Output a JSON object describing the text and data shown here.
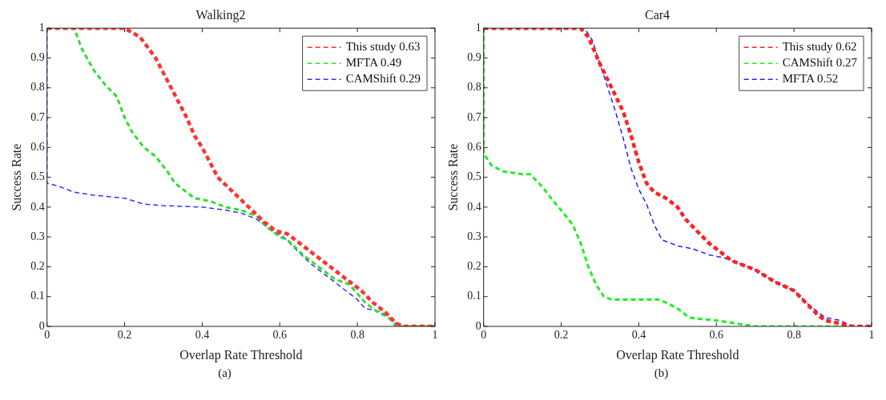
{
  "chart_data": [
    {
      "type": "line",
      "title": "Walking2",
      "xlabel": "Overlap Rate Threshold",
      "ylabel": "Success Rate",
      "xlim": [
        0,
        1
      ],
      "ylim": [
        0,
        1
      ],
      "xticks": [
        0,
        0.2,
        0.4,
        0.6,
        0.8,
        1
      ],
      "yticks": [
        0,
        0.1,
        0.2,
        0.3,
        0.4,
        0.5,
        0.6,
        0.7,
        0.8,
        0.9,
        1
      ],
      "grid": false,
      "legend": "top right",
      "line_style": "dashed",
      "marker": "none",
      "annotations": [
        "(a)"
      ],
      "series": [
        {
          "name": "This study 0.63",
          "color": "#ff3333",
          "x": [
            0,
            0.2,
            0.24,
            0.28,
            0.32,
            0.36,
            0.38,
            0.4,
            0.44,
            0.48,
            0.52,
            0.56,
            0.59,
            0.62,
            0.66,
            0.7,
            0.74,
            0.78,
            0.81,
            0.84,
            0.87,
            0.9,
            0.92,
            1
          ],
          "values": [
            1,
            1,
            0.97,
            0.9,
            0.8,
            0.7,
            0.64,
            0.6,
            0.5,
            0.45,
            0.4,
            0.35,
            0.32,
            0.31,
            0.27,
            0.23,
            0.19,
            0.15,
            0.12,
            0.08,
            0.05,
            0.01,
            0,
            0
          ]
        },
        {
          "name": "MFTA 0.49",
          "color": "#33dd33",
          "x": [
            0,
            0.07,
            0.09,
            0.12,
            0.15,
            0.18,
            0.2,
            0.22,
            0.25,
            0.28,
            0.31,
            0.33,
            0.36,
            0.38,
            0.42,
            0.46,
            0.5,
            0.54,
            0.57,
            0.6,
            0.62,
            0.66,
            0.7,
            0.74,
            0.78,
            0.8,
            0.82,
            0.85,
            0.88,
            0.9,
            1
          ],
          "values": [
            1,
            1,
            0.93,
            0.86,
            0.81,
            0.77,
            0.7,
            0.65,
            0.6,
            0.57,
            0.52,
            0.48,
            0.45,
            0.43,
            0.42,
            0.4,
            0.39,
            0.37,
            0.33,
            0.3,
            0.29,
            0.24,
            0.2,
            0.16,
            0.14,
            0.11,
            0.08,
            0.05,
            0.03,
            0,
            0
          ]
        },
        {
          "name": "CAMShift 0.29",
          "color": "#3333ff",
          "x": [
            0,
            0,
            0.03,
            0.07,
            0.12,
            0.2,
            0.25,
            0.3,
            0.4,
            0.46,
            0.5,
            0.54,
            0.58,
            0.61,
            0.64,
            0.68,
            0.72,
            0.76,
            0.8,
            0.82,
            0.86,
            0.9,
            0.91,
            1
          ],
          "values": [
            1,
            0.48,
            0.47,
            0.45,
            0.44,
            0.43,
            0.41,
            0.405,
            0.4,
            0.39,
            0.38,
            0.36,
            0.32,
            0.3,
            0.26,
            0.21,
            0.17,
            0.13,
            0.09,
            0.06,
            0.05,
            0.01,
            0,
            0
          ]
        }
      ]
    },
    {
      "type": "line",
      "title": "Car4",
      "xlabel": "Overlap Rate Threshold",
      "ylabel": "Success Rate",
      "xlim": [
        0,
        1
      ],
      "ylim": [
        0,
        1
      ],
      "xticks": [
        0,
        0.2,
        0.4,
        0.6,
        0.8,
        1
      ],
      "yticks": [
        0,
        0.1,
        0.2,
        0.3,
        0.4,
        0.5,
        0.6,
        0.7,
        0.8,
        0.9,
        1
      ],
      "grid": false,
      "legend": "top right",
      "line_style": "dashed",
      "marker": "none",
      "annotations": [
        "(b)"
      ],
      "series": [
        {
          "name": "This study 0.62",
          "color": "#ff2222",
          "x": [
            0,
            0.25,
            0.27,
            0.3,
            0.33,
            0.36,
            0.38,
            0.4,
            0.42,
            0.44,
            0.47,
            0.5,
            0.52,
            0.55,
            0.58,
            0.61,
            0.64,
            0.7,
            0.75,
            0.8,
            0.83,
            0.86,
            0.88,
            0.92,
            0.95,
            1
          ],
          "values": [
            1,
            1,
            0.97,
            0.88,
            0.8,
            0.72,
            0.64,
            0.55,
            0.48,
            0.45,
            0.43,
            0.4,
            0.36,
            0.32,
            0.28,
            0.25,
            0.22,
            0.19,
            0.15,
            0.12,
            0.08,
            0.04,
            0.02,
            0.01,
            0,
            0
          ]
        },
        {
          "name": "CAMShift 0.27",
          "color": "#22ee22",
          "x": [
            0,
            0,
            0.02,
            0.05,
            0.1,
            0.12,
            0.15,
            0.18,
            0.2,
            0.23,
            0.25,
            0.27,
            0.29,
            0.31,
            0.33,
            0.45,
            0.47,
            0.5,
            0.53,
            0.56,
            0.6,
            0.65,
            0.7,
            1
          ],
          "values": [
            1,
            0.58,
            0.54,
            0.52,
            0.51,
            0.51,
            0.47,
            0.42,
            0.39,
            0.34,
            0.28,
            0.2,
            0.14,
            0.1,
            0.09,
            0.09,
            0.08,
            0.06,
            0.03,
            0.025,
            0.02,
            0.01,
            0,
            0
          ]
        },
        {
          "name": "MFTA 0.52",
          "color": "#2222ff",
          "x": [
            0,
            0.26,
            0.28,
            0.3,
            0.32,
            0.34,
            0.36,
            0.38,
            0.4,
            0.42,
            0.44,
            0.46,
            0.5,
            0.54,
            0.58,
            0.62,
            0.66,
            0.7,
            0.75,
            0.8,
            0.84,
            0.88,
            0.92,
            0.95,
            1
          ],
          "values": [
            1,
            1,
            0.96,
            0.88,
            0.8,
            0.72,
            0.63,
            0.53,
            0.46,
            0.41,
            0.34,
            0.29,
            0.27,
            0.26,
            0.24,
            0.23,
            0.21,
            0.19,
            0.15,
            0.12,
            0.07,
            0.03,
            0.02,
            0,
            0
          ]
        }
      ]
    }
  ]
}
